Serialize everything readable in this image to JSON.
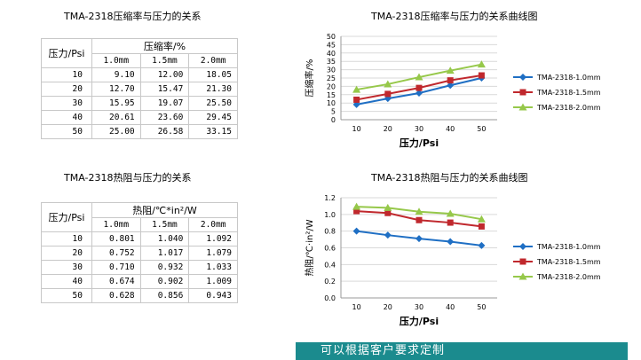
{
  "table1": {
    "title": "TMA-2318压缩率与压力的关系",
    "row_header": "压力/Psi",
    "group_header": "压缩率/%",
    "columns": [
      "1.0mm",
      "1.5mm",
      "2.0mm"
    ],
    "rows": [
      {
        "psi": "10",
        "v": [
          "9.10",
          "12.00",
          "18.05"
        ]
      },
      {
        "psi": "20",
        "v": [
          "12.70",
          "15.47",
          "21.30"
        ]
      },
      {
        "psi": "30",
        "v": [
          "15.95",
          "19.07",
          "25.50"
        ]
      },
      {
        "psi": "40",
        "v": [
          "20.61",
          "23.60",
          "29.45"
        ]
      },
      {
        "psi": "50",
        "v": [
          "25.00",
          "26.58",
          "33.15"
        ]
      }
    ]
  },
  "table2": {
    "title": "TMA-2318热阻与压力的关系",
    "row_header": "压力/Psi",
    "group_header": "热阻/℃*in²/W",
    "columns": [
      "1.0mm",
      "1.5mm",
      "2.0mm"
    ],
    "rows": [
      {
        "psi": "10",
        "v": [
          "0.801",
          "1.040",
          "1.092"
        ]
      },
      {
        "psi": "20",
        "v": [
          "0.752",
          "1.017",
          "1.079"
        ]
      },
      {
        "psi": "30",
        "v": [
          "0.710",
          "0.932",
          "1.033"
        ]
      },
      {
        "psi": "40",
        "v": [
          "0.674",
          "0.902",
          "1.009"
        ]
      },
      {
        "psi": "50",
        "v": [
          "0.628",
          "0.856",
          "0.943"
        ]
      }
    ]
  },
  "chart_data": [
    {
      "type": "line",
      "title": "TMA-2318压缩率与压力的关系曲线图",
      "xlabel": "压力/Psi",
      "ylabel": "压缩率/%",
      "categories": [
        "10",
        "20",
        "30",
        "40",
        "50"
      ],
      "ylim": [
        0,
        50
      ],
      "yticks": [
        "0",
        "5",
        "10",
        "15",
        "20",
        "25",
        "30",
        "35",
        "40",
        "45",
        "50"
      ],
      "legend_position": "right",
      "grid": true,
      "series": [
        {
          "name": "TMA-2318-1.0mm",
          "color": "#1f6fc4",
          "marker": "diamond",
          "values": [
            9.1,
            12.7,
            15.95,
            20.61,
            25.0
          ]
        },
        {
          "name": "TMA-2318-1.5mm",
          "color": "#c0282d",
          "marker": "square",
          "values": [
            12.0,
            15.47,
            19.07,
            23.6,
            26.58
          ]
        },
        {
          "name": "TMA-2318-2.0mm",
          "color": "#96c84a",
          "marker": "triangle",
          "values": [
            18.05,
            21.3,
            25.5,
            29.45,
            33.15
          ]
        }
      ]
    },
    {
      "type": "line",
      "title": "TMA-2318热阻与压力的关系曲线图",
      "xlabel": "压力/Psi",
      "ylabel": "热阻/℃·in²/W",
      "categories": [
        "10",
        "20",
        "30",
        "40",
        "50"
      ],
      "ylim": [
        0,
        1.2
      ],
      "yticks": [
        "0.0",
        "0.2",
        "0.4",
        "0.6",
        "0.8",
        "1.0",
        "1.2"
      ],
      "legend_position": "right",
      "grid": true,
      "series": [
        {
          "name": "TMA-2318-1.0mm",
          "color": "#1f6fc4",
          "marker": "diamond",
          "values": [
            0.801,
            0.752,
            0.71,
            0.674,
            0.628
          ]
        },
        {
          "name": "TMA-2318-1.5mm",
          "color": "#c0282d",
          "marker": "square",
          "values": [
            1.04,
            1.017,
            0.932,
            0.902,
            0.856
          ]
        },
        {
          "name": "TMA-2318-2.0mm",
          "color": "#96c84a",
          "marker": "triangle",
          "values": [
            1.092,
            1.079,
            1.033,
            1.009,
            0.943
          ]
        }
      ]
    }
  ],
  "banner": {
    "text": "可以根据客户要求定制"
  }
}
